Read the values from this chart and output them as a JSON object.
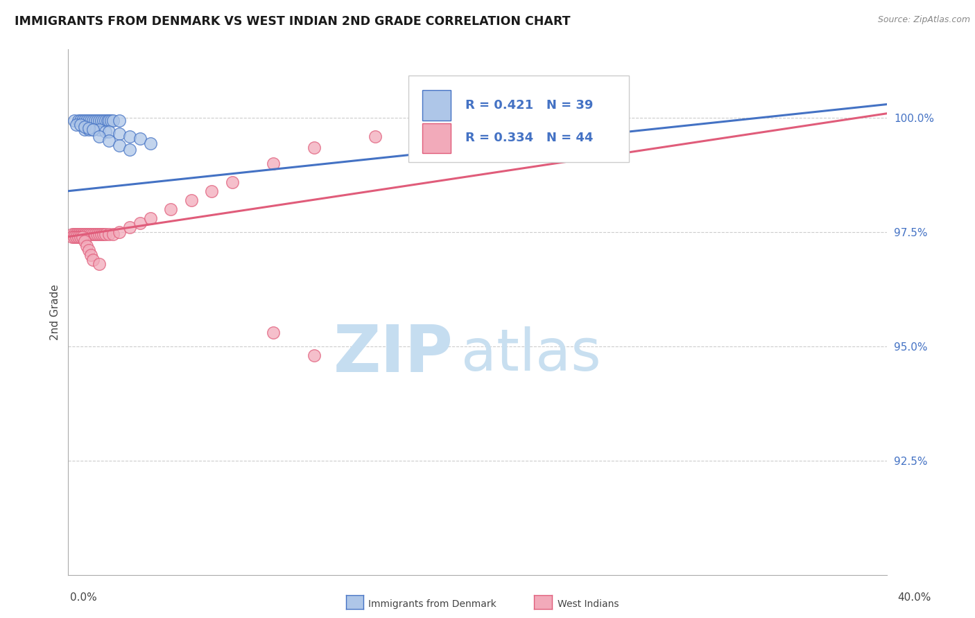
{
  "title": "IMMIGRANTS FROM DENMARK VS WEST INDIAN 2ND GRADE CORRELATION CHART",
  "source_text": "Source: ZipAtlas.com",
  "ylabel": "2nd Grade",
  "blue_color": "#4472c4",
  "pink_color": "#e05c7a",
  "blue_fill": "#aec6e8",
  "pink_fill": "#f2aaba",
  "R_blue": 0.421,
  "N_blue": 39,
  "R_pink": 0.334,
  "N_pink": 44,
  "xmin": 0.0,
  "xmax": 0.4,
  "ymin": 0.9,
  "ymax": 1.015,
  "yticks": [
    0.925,
    0.95,
    0.975,
    1.0
  ],
  "ytick_labels": [
    "92.5%",
    "95.0%",
    "97.5%",
    "100.0%"
  ],
  "gridline_y": [
    0.925,
    0.95,
    0.975,
    1.0
  ],
  "watermark_zip": "ZIP",
  "watermark_atlas": "atlas",
  "watermark_color_zip": "#c5ddf0",
  "watermark_color_atlas": "#c8dff0",
  "blue_line_x": [
    0.0,
    0.4
  ],
  "blue_line_y": [
    0.984,
    1.003
  ],
  "pink_line_x": [
    0.0,
    0.4
  ],
  "pink_line_y": [
    0.974,
    1.001
  ],
  "blue_x": [
    0.003,
    0.005,
    0.006,
    0.007,
    0.008,
    0.009,
    0.01,
    0.011,
    0.012,
    0.013,
    0.014,
    0.015,
    0.016,
    0.017,
    0.018,
    0.019,
    0.02,
    0.021,
    0.022,
    0.025,
    0.008,
    0.01,
    0.012,
    0.015,
    0.018,
    0.02,
    0.025,
    0.03,
    0.035,
    0.04,
    0.004,
    0.006,
    0.008,
    0.01,
    0.012,
    0.015,
    0.02,
    0.025,
    0.03
  ],
  "blue_y": [
    0.9995,
    0.9995,
    0.9995,
    0.9995,
    0.9995,
    0.9995,
    0.9995,
    0.9995,
    0.9995,
    0.9995,
    0.9995,
    0.9995,
    0.9995,
    0.9995,
    0.9995,
    0.9995,
    0.9995,
    0.9995,
    0.9995,
    0.9995,
    0.9975,
    0.9975,
    0.9975,
    0.9975,
    0.997,
    0.997,
    0.9965,
    0.996,
    0.9955,
    0.9945,
    0.9985,
    0.9985,
    0.998,
    0.9978,
    0.9975,
    0.996,
    0.995,
    0.994,
    0.993
  ],
  "pink_x": [
    0.002,
    0.003,
    0.004,
    0.005,
    0.006,
    0.007,
    0.008,
    0.009,
    0.01,
    0.011,
    0.012,
    0.013,
    0.014,
    0.015,
    0.016,
    0.017,
    0.018,
    0.02,
    0.022,
    0.025,
    0.03,
    0.035,
    0.04,
    0.05,
    0.06,
    0.07,
    0.08,
    0.1,
    0.12,
    0.15,
    0.002,
    0.003,
    0.004,
    0.005,
    0.006,
    0.007,
    0.008,
    0.009,
    0.01,
    0.011,
    0.012,
    0.015,
    0.1,
    0.12
  ],
  "pink_y": [
    0.9745,
    0.9745,
    0.9745,
    0.9745,
    0.9745,
    0.9745,
    0.9745,
    0.9745,
    0.9745,
    0.9745,
    0.9745,
    0.9745,
    0.9745,
    0.9745,
    0.9745,
    0.9745,
    0.9745,
    0.9745,
    0.9745,
    0.975,
    0.976,
    0.977,
    0.978,
    0.98,
    0.982,
    0.984,
    0.986,
    0.99,
    0.9935,
    0.996,
    0.974,
    0.974,
    0.974,
    0.974,
    0.974,
    0.974,
    0.973,
    0.972,
    0.971,
    0.97,
    0.969,
    0.968,
    0.953,
    0.948
  ]
}
